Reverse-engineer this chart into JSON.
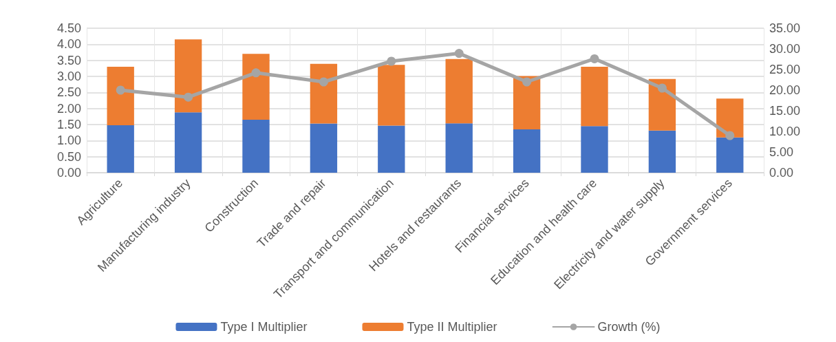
{
  "chart_data": {
    "type": "bar",
    "stacked": true,
    "categories": [
      "Agriculture",
      "Manufacturing industry",
      "Construction",
      "Trade and repair",
      "Transport and communication",
      "Hotels and restaurants",
      "Financial services",
      "Education and health care",
      "Electricity and water supply",
      "Government services"
    ],
    "series": [
      {
        "name": "Type I Multiplier",
        "color": "#4472c4",
        "values": [
          1.48,
          1.88,
          1.65,
          1.53,
          1.47,
          1.54,
          1.35,
          1.45,
          1.31,
          1.1
        ]
      },
      {
        "name": "Type II Multiplier",
        "color": "#ed7d31",
        "values": [
          1.82,
          2.27,
          2.05,
          1.86,
          1.89,
          2.0,
          1.66,
          1.85,
          1.61,
          1.21
        ]
      },
      {
        "name": "Growth (%)",
        "type": "line",
        "axis": "y2",
        "color": "#a5a5a5",
        "values": [
          20.0,
          18.3,
          24.2,
          22.0,
          27.0,
          28.9,
          22.0,
          27.6,
          20.5,
          9.0
        ]
      }
    ],
    "ylim": [
      0,
      4.5
    ],
    "yticks": [
      {
        "value": 0,
        "label": "0.00"
      },
      {
        "value": 0.5,
        "label": "0.50"
      },
      {
        "value": 1,
        "label": "1.00"
      },
      {
        "value": 1.5,
        "label": "1.50"
      },
      {
        "value": 2,
        "label": "2.00"
      },
      {
        "value": 2.5,
        "label": "2.50"
      },
      {
        "value": 3,
        "label": "3.00"
      },
      {
        "value": 3.5,
        "label": "3.50"
      },
      {
        "value": 4,
        "label": "4.00"
      },
      {
        "value": 4.5,
        "label": "4.50"
      }
    ],
    "y2lim": [
      0,
      35
    ],
    "y2ticks": [
      {
        "value": 0,
        "label": "0.00"
      },
      {
        "value": 5,
        "label": "5.00"
      },
      {
        "value": 10,
        "label": "10.00"
      },
      {
        "value": 15,
        "label": "15.00"
      },
      {
        "value": 20,
        "label": "20.00"
      },
      {
        "value": 25,
        "label": "25.00"
      },
      {
        "value": 30,
        "label": "30.00"
      },
      {
        "value": 35,
        "label": "35.00"
      }
    ],
    "grid": true,
    "legend": "bottom",
    "marker": "circle",
    "line_style": "solid"
  }
}
